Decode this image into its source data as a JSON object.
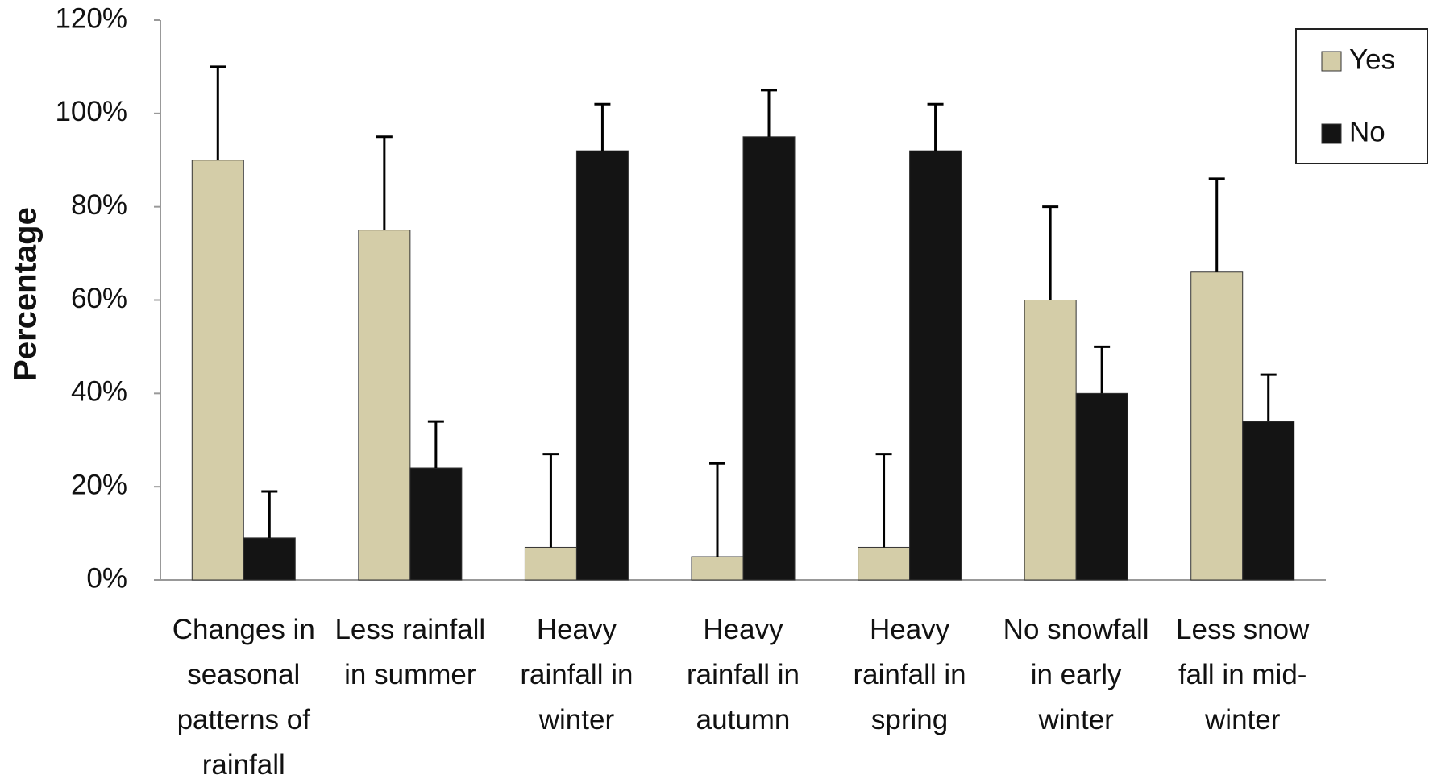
{
  "chart_data": {
    "type": "bar",
    "y_label": "Percentage",
    "categories": [
      "Changes in seasonal patterns of rainfall",
      "Less rainfall in summer",
      "Heavy rainfall in winter",
      "Heavy rainfall in autumn",
      "Heavy rainfall in spring",
      "No snowfall in early winter",
      "Less snow fall in mid-winter"
    ],
    "series": [
      {
        "name": "Yes",
        "color": "#d4cda8",
        "values": [
          90,
          75,
          7,
          5,
          7,
          60,
          66
        ],
        "errors": [
          20,
          20,
          20,
          20,
          20,
          20,
          20
        ]
      },
      {
        "name": "No",
        "color": "#141414",
        "values": [
          9,
          24,
          92,
          95,
          92,
          40,
          34
        ],
        "errors": [
          10,
          10,
          10,
          10,
          10,
          10,
          10
        ]
      }
    ],
    "ylim": [
      0,
      120
    ],
    "yticks": [
      {
        "value": 0,
        "label": "0%"
      },
      {
        "value": 20,
        "label": "20%"
      },
      {
        "value": 40,
        "label": "40%"
      },
      {
        "value": 60,
        "label": "60%"
      },
      {
        "value": 80,
        "label": "80%"
      },
      {
        "value": 100,
        "label": "100%"
      },
      {
        "value": 120,
        "label": "120%"
      }
    ],
    "grid": false,
    "legend": "top-right"
  }
}
